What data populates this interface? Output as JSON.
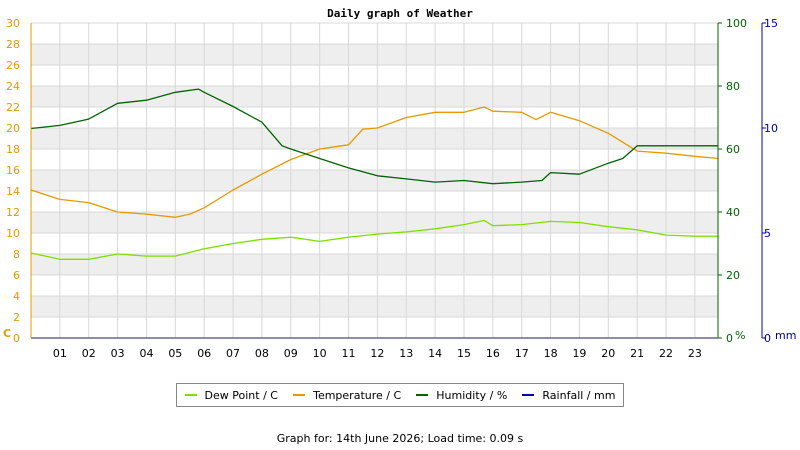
{
  "chart_data": {
    "type": "line",
    "title": "Daily graph of Weather",
    "x_ticks": [
      "01",
      "02",
      "03",
      "04",
      "05",
      "06",
      "07",
      "08",
      "09",
      "10",
      "11",
      "12",
      "13",
      "14",
      "15",
      "16",
      "17",
      "18",
      "19",
      "20",
      "21",
      "22",
      "23"
    ],
    "axes": {
      "temp": {
        "unit_label": "C",
        "ylim": [
          0,
          30
        ],
        "ticks": [
          0,
          2,
          4,
          6,
          8,
          10,
          12,
          14,
          16,
          18,
          20,
          22,
          24,
          26,
          28,
          30
        ],
        "color": "#e69900"
      },
      "humidity": {
        "unit_label": "%",
        "ylim": [
          0,
          100
        ],
        "ticks": [
          0,
          20,
          40,
          60,
          80,
          100
        ],
        "color": "#006400"
      },
      "rain": {
        "unit_label": "mm",
        "ylim": [
          0,
          15
        ],
        "ticks": [
          0,
          5,
          10,
          15
        ],
        "color": "#0000aa"
      }
    },
    "grid": true,
    "legend_position": "bottom",
    "series": [
      {
        "name": "Dew Point / C",
        "axis": "temp",
        "color": "#7fe000",
        "x": [
          0,
          1,
          2,
          3,
          4,
          5,
          6,
          7,
          8,
          9,
          10,
          11,
          12,
          13,
          14,
          15,
          15.7,
          16,
          17,
          18,
          19,
          20,
          21,
          22,
          23,
          23.8
        ],
        "y": [
          8.1,
          7.5,
          7.5,
          8.0,
          7.8,
          7.8,
          8.5,
          9.0,
          9.4,
          9.6,
          9.2,
          9.6,
          9.9,
          10.1,
          10.4,
          10.8,
          11.2,
          10.7,
          10.8,
          11.1,
          11.0,
          10.6,
          10.3,
          9.8,
          9.7,
          9.7
        ]
      },
      {
        "name": "Temperature / C",
        "axis": "temp",
        "color": "#e69900",
        "x": [
          0,
          1,
          2,
          3,
          4,
          5,
          5.5,
          6,
          7,
          8,
          9,
          10,
          11,
          11.5,
          12,
          13,
          14,
          15,
          15.7,
          16,
          17,
          17.5,
          18,
          19,
          20,
          21,
          22,
          23,
          23.8
        ],
        "y": [
          14.1,
          13.2,
          12.9,
          12.0,
          11.8,
          11.5,
          11.8,
          12.4,
          14.1,
          15.6,
          17.0,
          18.0,
          18.4,
          19.9,
          20.0,
          21.0,
          21.5,
          21.5,
          22.0,
          21.6,
          21.5,
          20.8,
          21.5,
          20.7,
          19.5,
          17.8,
          17.6,
          17.3,
          17.1
        ]
      },
      {
        "name": "Humidity / %",
        "axis": "humidity",
        "color": "#006400",
        "x": [
          0,
          1,
          2,
          3,
          4,
          5,
          5.8,
          6,
          7,
          8,
          8.7,
          9,
          10,
          11,
          12,
          13,
          14,
          15,
          16,
          17,
          17.7,
          18,
          19,
          20,
          20.5,
          21,
          22,
          23,
          23.8
        ],
        "y": [
          66.5,
          67.5,
          69.5,
          74.5,
          75.5,
          78,
          79,
          78,
          73.5,
          68.5,
          61,
          60,
          57,
          54,
          51.5,
          50.5,
          49.5,
          50,
          49,
          49.5,
          50,
          52.5,
          52,
          55.5,
          57,
          61,
          61,
          61,
          61
        ]
      },
      {
        "name": "Rainfall / mm",
        "axis": "rain",
        "color": "#0000aa",
        "x": [
          0,
          23.8
        ],
        "y": [
          0,
          0
        ]
      }
    ]
  },
  "footer": "Graph for: 14th June 2026; Load time: 0.09 s"
}
